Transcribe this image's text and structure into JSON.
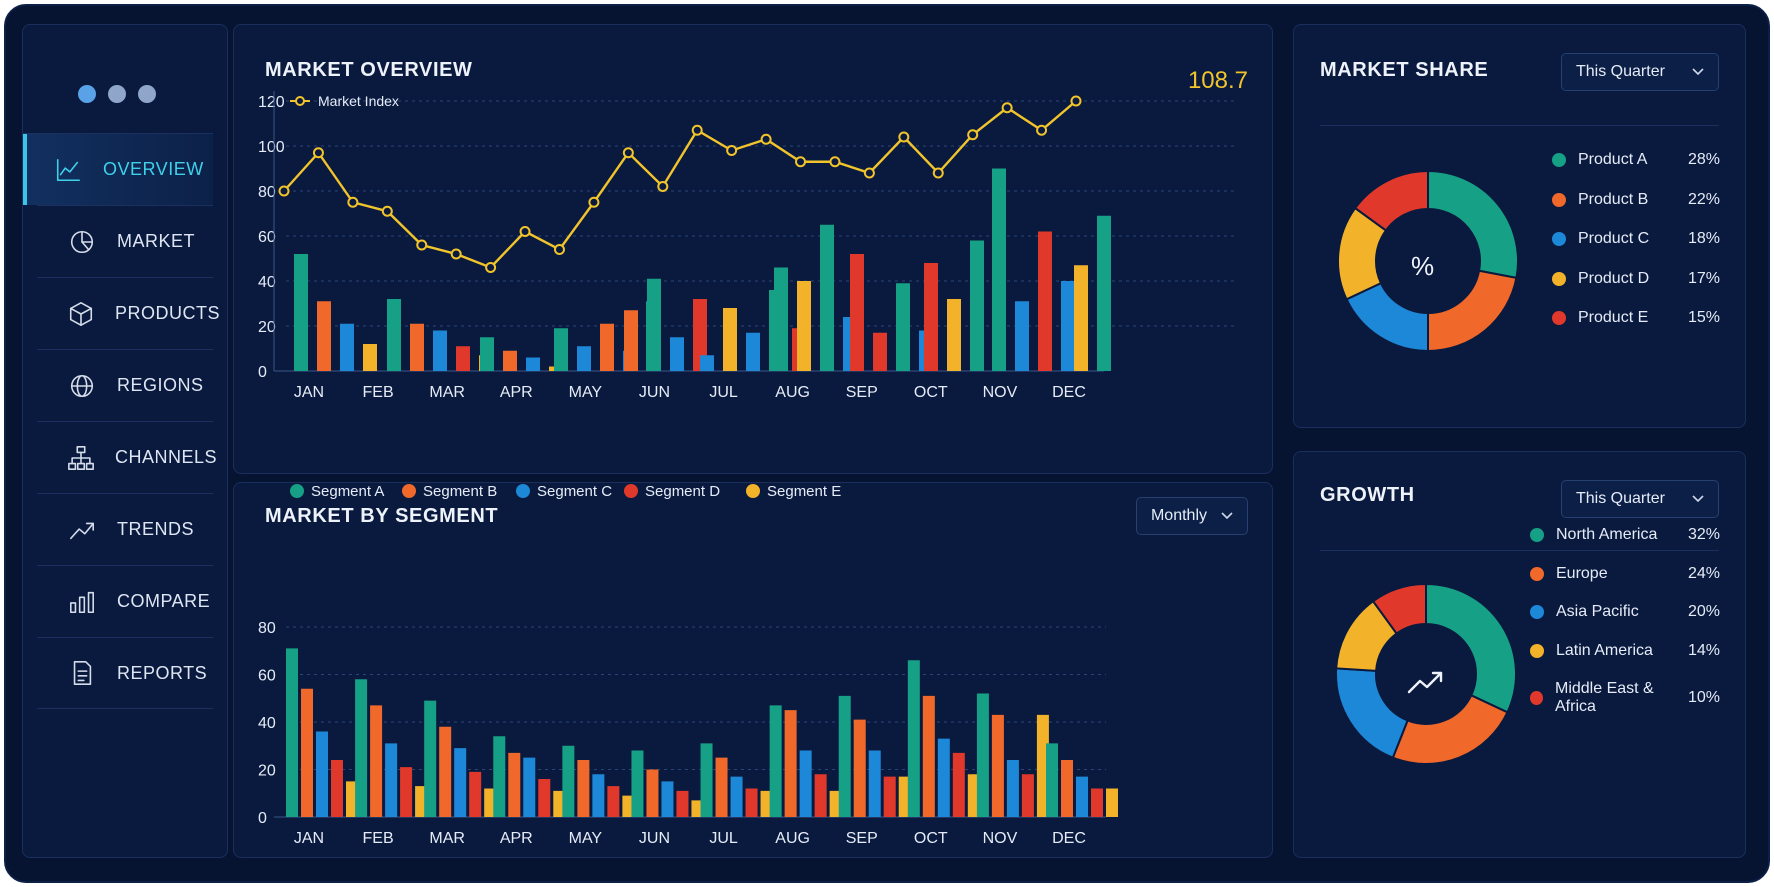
{
  "nav": {
    "items": [
      {
        "label": "OVERVIEW",
        "icon": "line-chart-icon",
        "active": true
      },
      {
        "label": "MARKET",
        "icon": "pie-chart-icon",
        "active": false
      },
      {
        "label": "PRODUCTS",
        "icon": "box-icon",
        "active": false
      },
      {
        "label": "REGIONS",
        "icon": "globe-icon",
        "active": false
      },
      {
        "label": "CHANNELS",
        "icon": "hierarchy-icon",
        "active": false
      },
      {
        "label": "TRENDS",
        "icon": "trend-up-icon",
        "active": false
      },
      {
        "label": "COMPARE",
        "icon": "bar-chart-icon",
        "active": false
      },
      {
        "label": "REPORTS",
        "icon": "document-icon",
        "active": false
      }
    ]
  },
  "overview": {
    "title": "MARKET OVERVIEW",
    "current_value": "108.7"
  },
  "segment": {
    "title": "MARKET BY SEGMENT",
    "dropdown": "Monthly"
  },
  "share": {
    "title": "MARKET SHARE",
    "dropdown": "This Quarter",
    "center": "%"
  },
  "growth": {
    "title": "GROWTH",
    "dropdown": "This Quarter"
  },
  "colors": {
    "teal": "#16a085",
    "orange": "#f0682a",
    "blue": "#1e88d8",
    "red": "#e0392b",
    "yellow": "#f2b22a",
    "line": "#f2c42c"
  },
  "chart_data": [
    {
      "type": "bar+line",
      "title": "MARKET OVERVIEW",
      "categories": [
        "JAN",
        "FEB",
        "MAR",
        "APR",
        "MAY",
        "JUN",
        "JUL",
        "AUG",
        "SEP",
        "OCT",
        "NOV",
        "DEC"
      ],
      "ylim": [
        0,
        120
      ],
      "yticks": [
        0,
        20,
        40,
        60,
        80,
        100,
        120
      ],
      "line": {
        "name": "Market Index",
        "values": [
          80,
          97,
          75,
          71,
          56,
          52,
          46,
          62,
          54,
          75,
          97,
          82,
          107,
          98,
          103,
          93,
          93,
          88,
          104,
          88,
          105,
          117,
          107,
          120
        ]
      },
      "bars": [
        {
          "values": [
            52,
            31,
            21,
            12
          ]
        },
        {
          "values": [
            32,
            21,
            18,
            11,
            7
          ]
        },
        {
          "values": [
            15,
            9,
            6,
            2
          ]
        },
        {
          "values": [
            19,
            11,
            21,
            9,
            31
          ]
        },
        {
          "values": [
            27,
            41,
            15,
            32
          ]
        },
        {
          "values": [
            7,
            28,
            17,
            36,
            19
          ]
        },
        {
          "values": [
            46,
            40,
            65,
            24
          ]
        },
        {
          "values": [
            52,
            17,
            39,
            18
          ]
        },
        {
          "values": [
            48,
            32,
            58
          ]
        },
        {
          "values": [
            90,
            31,
            62,
            40
          ]
        },
        {
          "values": [
            47,
            69
          ]
        }
      ],
      "bar_colors": [
        [
          "teal",
          "orange",
          "blue",
          "yellow"
        ],
        [
          "teal",
          "orange",
          "blue",
          "red",
          "yellow"
        ],
        [
          "teal",
          "orange",
          "blue",
          "yellow"
        ],
        [
          "teal",
          "blue",
          "orange",
          "blue",
          "teal"
        ],
        [
          "orange",
          "teal",
          "blue",
          "red"
        ],
        [
          "blue",
          "yellow",
          "blue",
          "teal",
          "red"
        ],
        [
          "teal",
          "yellow",
          "teal",
          "blue"
        ],
        [
          "red",
          "red",
          "teal",
          "blue"
        ],
        [
          "red",
          "yellow",
          "teal"
        ],
        [
          "teal",
          "blue",
          "red",
          "blue"
        ],
        [
          "yellow",
          "teal"
        ]
      ]
    },
    {
      "type": "bar",
      "title": "MARKET BY SEGMENT",
      "categories": [
        "JAN",
        "FEB",
        "MAR",
        "APR",
        "MAY",
        "JUN",
        "JUL",
        "AUG",
        "SEP",
        "OCT",
        "NOV",
        "DEC"
      ],
      "ylim": [
        0,
        80
      ],
      "yticks": [
        0,
        20,
        40,
        60,
        80
      ],
      "series": [
        {
          "name": "Segment A",
          "color": "teal",
          "values": [
            71,
            58,
            49,
            34,
            30,
            28,
            31,
            47,
            51,
            66,
            52,
            31
          ]
        },
        {
          "name": "Segment B",
          "color": "orange",
          "values": [
            54,
            47,
            38,
            27,
            24,
            20,
            25,
            45,
            41,
            51,
            43,
            24
          ]
        },
        {
          "name": "Segment C",
          "color": "blue",
          "values": [
            36,
            31,
            29,
            25,
            18,
            15,
            17,
            28,
            28,
            33,
            24,
            17
          ]
        },
        {
          "name": "Segment D",
          "color": "red",
          "values": [
            24,
            21,
            19,
            16,
            13,
            11,
            12,
            18,
            17,
            27,
            18,
            12
          ]
        },
        {
          "name": "Segment E",
          "color": "yellow",
          "values": [
            15,
            13,
            12,
            11,
            9,
            7,
            11,
            11,
            17,
            18,
            43,
            12
          ]
        }
      ],
      "legend": "top"
    },
    {
      "type": "pie",
      "title": "MARKET SHARE",
      "labels": [
        "Product A",
        "Product B",
        "Product C",
        "Product D",
        "Product E"
      ],
      "values": [
        28,
        22,
        18,
        17,
        15
      ],
      "display": [
        "28%",
        "22%",
        "18%",
        "17%",
        "15%"
      ],
      "colors": [
        "teal",
        "orange",
        "blue",
        "yellow",
        "red"
      ]
    },
    {
      "type": "pie",
      "title": "GROWTH",
      "labels": [
        "North America",
        "Europe",
        "Asia Pacific",
        "Latin America",
        "Middle East & Africa"
      ],
      "values": [
        32,
        24,
        20,
        14,
        10
      ],
      "display": [
        "32%",
        "24%",
        "20%",
        "14%",
        "10%"
      ],
      "colors": [
        "teal",
        "orange",
        "blue",
        "yellow",
        "red"
      ]
    }
  ]
}
